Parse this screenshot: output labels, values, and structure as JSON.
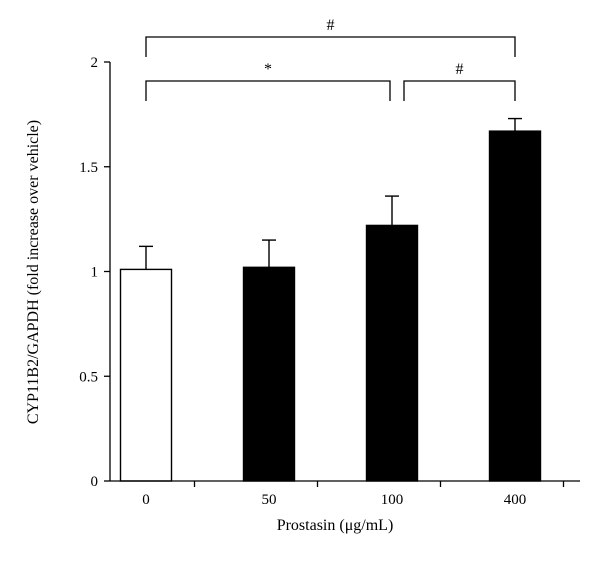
{
  "chart_data": {
    "type": "bar",
    "categories": [
      "0",
      "50",
      "100",
      "400"
    ],
    "values": [
      1.01,
      1.02,
      1.22,
      1.67
    ],
    "errors": [
      0.11,
      0.13,
      0.14,
      0.06
    ],
    "bar_colors": [
      "#ffffff",
      "#000000",
      "#000000",
      "#000000"
    ],
    "ylim": [
      0,
      2
    ],
    "yticks": [
      "0",
      "0.5",
      "1",
      "1.5",
      "2"
    ],
    "ytick_values": [
      0,
      0.5,
      1,
      1.5,
      2
    ],
    "xlabel": "Prostasin (μg/mL)",
    "ylabel": "CYP11B2/GAPDH (fold increase over vehicle)",
    "significance": [
      {
        "from": "0",
        "to": "100",
        "label": "*"
      },
      {
        "from": "100",
        "to": "400",
        "label": "#"
      },
      {
        "from": "0",
        "to": "400",
        "label": "#"
      }
    ]
  }
}
